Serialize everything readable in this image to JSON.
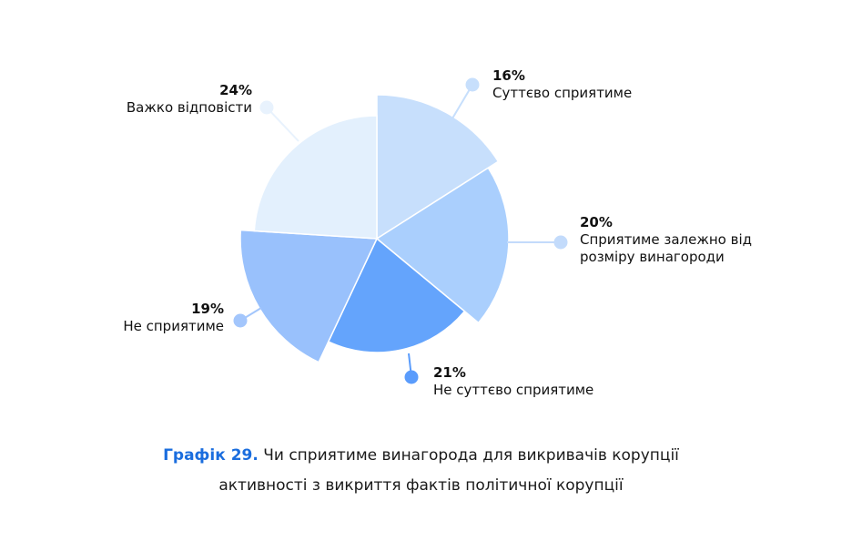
{
  "chart_data": {
    "type": "pie",
    "slices": [
      {
        "label_lines": [
          "Суттєво сприятиме"
        ],
        "value": 16,
        "value_label": "16%",
        "color": "#c7dffc",
        "dot_color": "#c7dffc"
      },
      {
        "label_lines": [
          "Сприятиме залежно від",
          "розміру винагороди"
        ],
        "value": 20,
        "value_label": "20%",
        "color": "#aacffd",
        "dot_color": "#c3dbfb"
      },
      {
        "label_lines": [
          "Не суттєво сприятиме"
        ],
        "value": 21,
        "value_label": "21%",
        "color": "#64a4fc",
        "dot_color": "#5a9cfc"
      },
      {
        "label_lines": [
          "Не сприятиме"
        ],
        "value": 19,
        "value_label": "19%",
        "color": "#99c1fc",
        "dot_color": "#a3c6fc"
      },
      {
        "label_lines": [
          "Важко відповісти"
        ],
        "value": 24,
        "value_label": "24%",
        "color": "#e3f0fd",
        "dot_color": "#e8f2fd"
      }
    ]
  },
  "caption": {
    "prefix": "Графік 29.",
    "line1": " Чи сприятиме винагорода для викривачів корупції",
    "line2": "активності з викриття фактів політичної корупції"
  }
}
